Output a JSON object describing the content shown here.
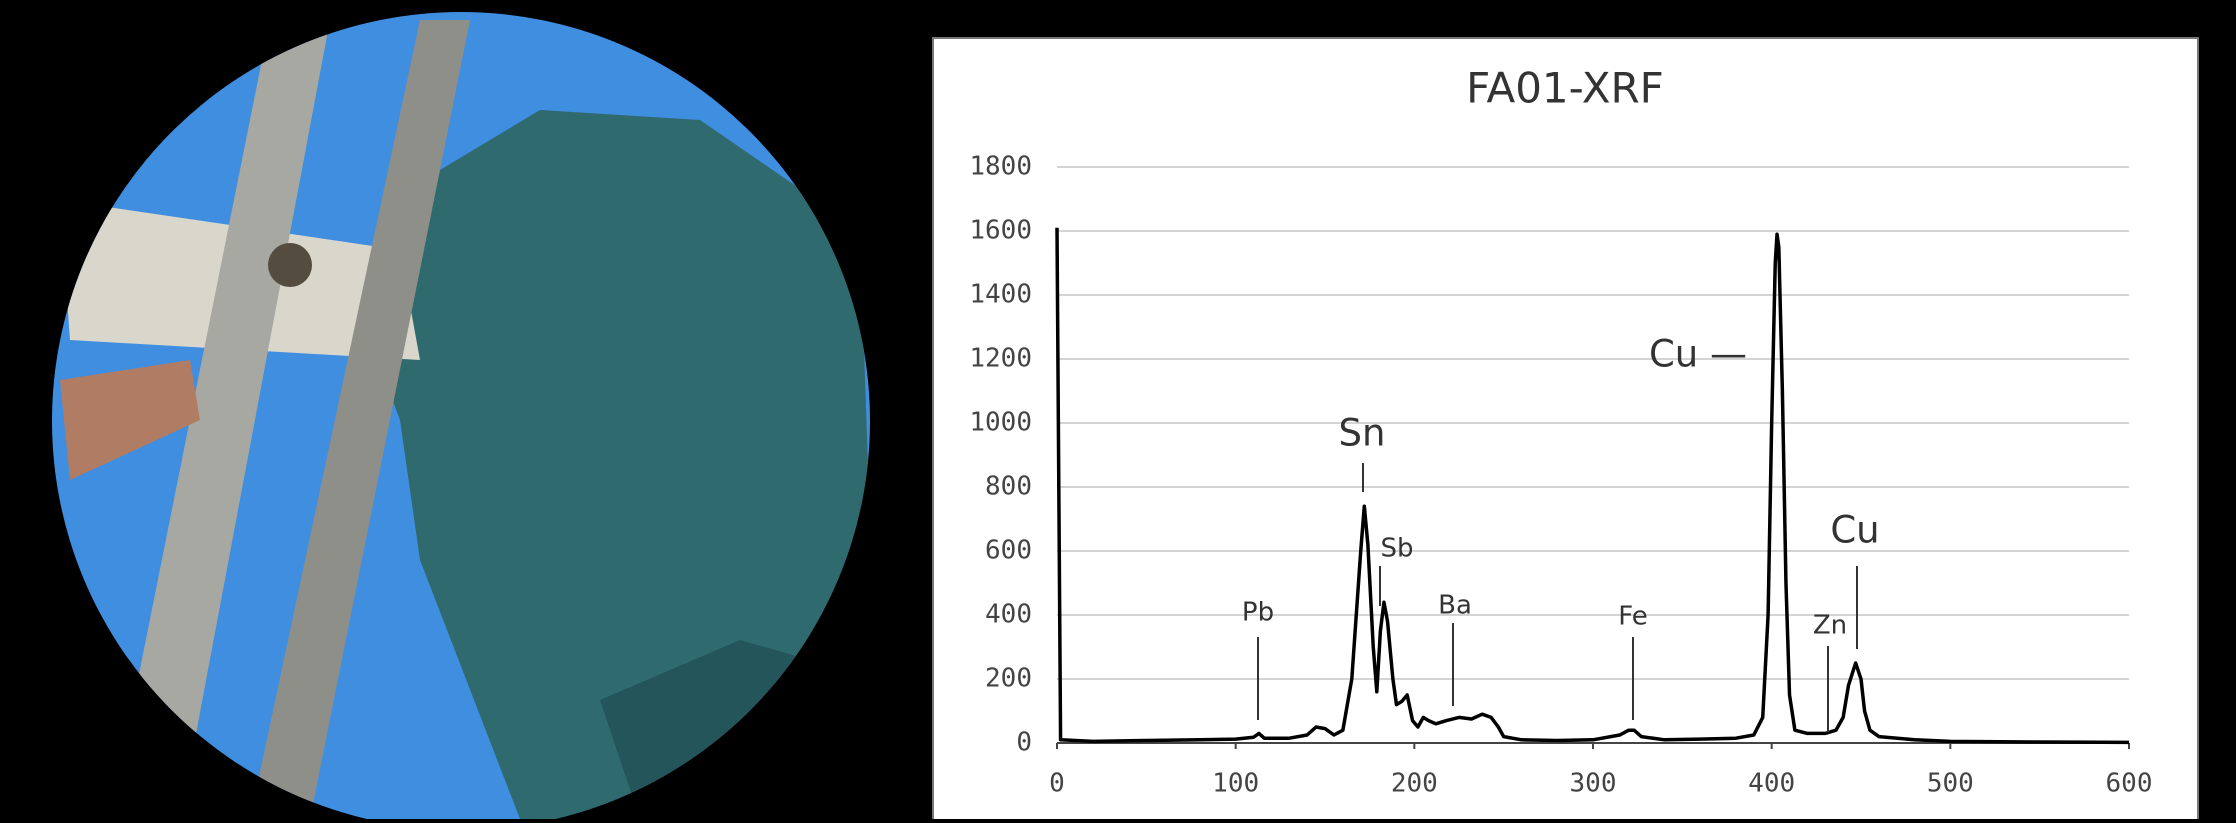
{
  "chart_data": {
    "type": "line",
    "title": "FA01-XRF",
    "x": [
      0,
      2,
      20,
      50,
      80,
      100,
      110,
      113,
      116,
      130,
      140,
      145,
      150,
      155,
      160,
      165,
      170,
      172,
      174,
      177,
      179,
      181,
      183,
      185,
      188,
      190,
      193,
      196,
      199,
      202,
      205,
      208,
      212,
      218,
      225,
      232,
      238,
      243,
      247,
      250,
      260,
      280,
      300,
      315,
      320,
      323,
      327,
      340,
      360,
      380,
      390,
      395,
      398,
      400,
      402,
      403,
      404,
      406,
      408,
      410,
      413,
      420,
      430,
      436,
      440,
      443,
      447,
      450,
      452,
      455,
      460,
      480,
      500,
      550,
      600
    ],
    "series": [
      {
        "color": "#000000",
        "values": [
          1610,
          10,
          5,
          8,
          10,
          12,
          18,
          30,
          15,
          15,
          25,
          50,
          45,
          25,
          40,
          200,
          600,
          740,
          620,
          300,
          160,
          350,
          440,
          380,
          200,
          120,
          130,
          150,
          70,
          50,
          80,
          70,
          60,
          70,
          80,
          75,
          90,
          80,
          50,
          20,
          10,
          8,
          10,
          25,
          40,
          40,
          20,
          10,
          12,
          15,
          25,
          80,
          400,
          1000,
          1500,
          1590,
          1550,
          1100,
          500,
          150,
          40,
          30,
          30,
          40,
          80,
          180,
          250,
          200,
          100,
          40,
          20,
          10,
          5,
          3,
          2
        ]
      }
    ],
    "xlim": [
      0,
      600
    ],
    "xticks": [
      0,
      100,
      200,
      300,
      400,
      500,
      600
    ],
    "ylim": [
      0,
      1800
    ],
    "yticks": [
      0,
      200,
      400,
      600,
      800,
      1000,
      1200,
      1400,
      1600,
      1800
    ],
    "grid": true,
    "annotations": [
      "Sn",
      "Sb",
      "Pb",
      "Ba",
      "Fe",
      "Cu —",
      "Cu",
      "Zn"
    ]
  }
}
